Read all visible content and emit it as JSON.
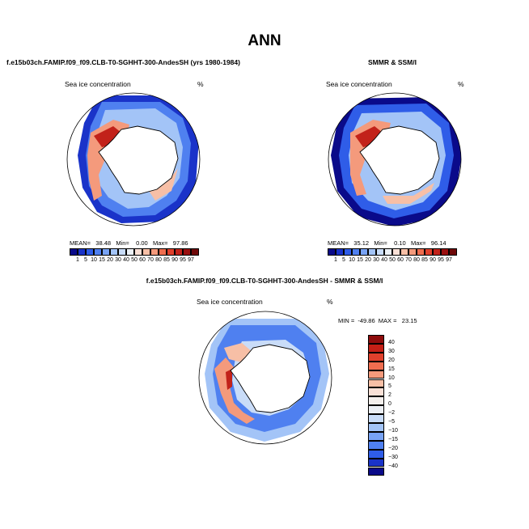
{
  "title": "ANN",
  "panels": [
    {
      "id": "model",
      "title": "f.e15b03ch.FAMIP.f09_f09.CLB-T0-SGHHT-300-AndesSH (yrs 1980-1984)",
      "field_label": "Sea ice concentration",
      "unit": "%",
      "stats_text": "MEAN=   38.48   Min=    0.00   Max=   97.86"
    },
    {
      "id": "obs",
      "title": "SMMR & SSM/I",
      "field_label": "Sea ice concentration",
      "unit": "%",
      "stats_text": "MEAN=   35.12   Min=    0.10   Max=   96.14"
    },
    {
      "id": "diff",
      "title": "f.e15b03ch.FAMIP.f09_f09.CLB-T0-SGHHT-300-AndesSH - SMMR & SSM/I",
      "field_label": "Sea ice concentration",
      "unit": "%",
      "stats_text": "MIN =  -49.86  MAX =   23.15"
    }
  ],
  "colorbar_conc": {
    "labels": [
      "1",
      "5",
      "10",
      "15",
      "20",
      "30",
      "40",
      "50",
      "60",
      "70",
      "80",
      "85",
      "90",
      "95",
      "97"
    ],
    "colors": [
      "#0a0a8a",
      "#1a33c9",
      "#2f5de8",
      "#4f80f0",
      "#78a3f5",
      "#a3c4f7",
      "#c9dcf8",
      "#ecf1f6",
      "#f9e0d6",
      "#f7bfa6",
      "#f49a7c",
      "#ef6d4f",
      "#e0402c",
      "#c2221a",
      "#9a1010",
      "#6e0808"
    ]
  },
  "colorbar_diff": {
    "labels": [
      "40",
      "30",
      "20",
      "15",
      "10",
      "5",
      "2",
      "0",
      "−2",
      "−5",
      "−10",
      "−15",
      "−20",
      "−30",
      "−40"
    ],
    "colors": [
      "#8e0c0c",
      "#c41f16",
      "#e0402c",
      "#ef6d4f",
      "#f49a7c",
      "#f7bfa6",
      "#f9e0d6",
      "#f4efec",
      "#eceff4",
      "#c9dcf8",
      "#a3c4f7",
      "#78a3f5",
      "#4f80f0",
      "#2f5de8",
      "#1a33c9",
      "#0a0a8a"
    ]
  }
}
